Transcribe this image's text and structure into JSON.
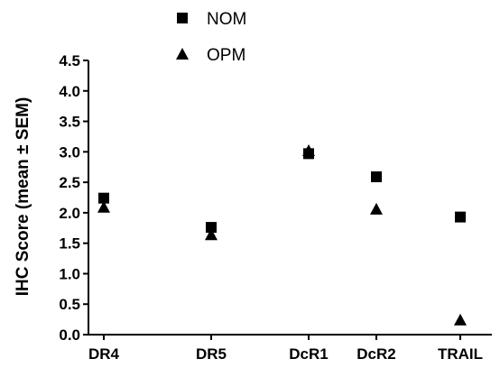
{
  "chart_data": {
    "type": "scatter",
    "title": "",
    "xlabel": "",
    "ylabel": "IHC Score (mean ± SEM)",
    "ylim": [
      0,
      4.5
    ],
    "yticks": [
      "0.0",
      "0.5",
      "1.0",
      "1.5",
      "2.0",
      "2.5",
      "3.0",
      "3.5",
      "4.0",
      "4.5"
    ],
    "categories": [
      "DR4",
      "DR5",
      "DcR1",
      "DcR2",
      "TRAIL"
    ],
    "series": [
      {
        "name": "NOM",
        "marker": "square",
        "values": [
          2.24,
          1.76,
          2.97,
          2.59,
          1.93
        ]
      },
      {
        "name": "OPM",
        "marker": "triangle",
        "values": [
          2.09,
          1.64,
          3.02,
          2.06,
          0.24
        ]
      }
    ],
    "legend": "top-center",
    "grid": false,
    "marker_color": "#000000"
  }
}
